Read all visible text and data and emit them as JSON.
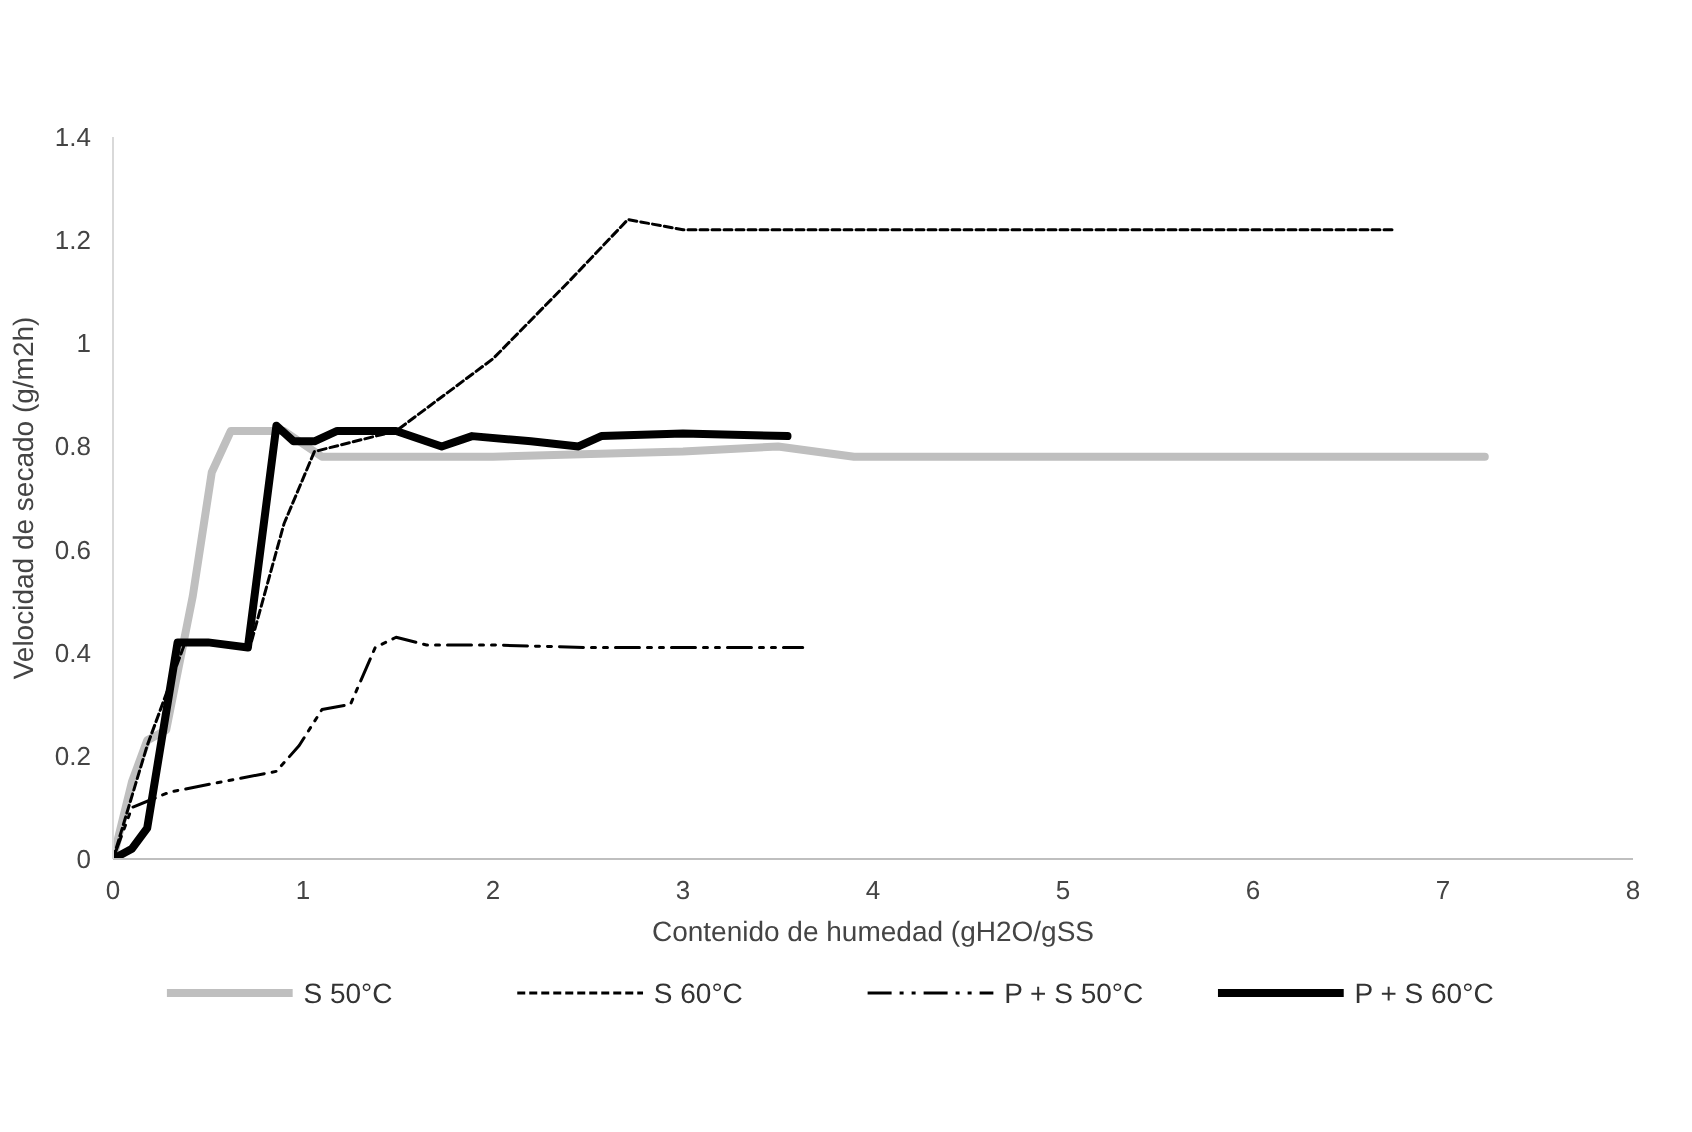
{
  "chart_data": {
    "type": "line",
    "xlabel": "Contenido de humedad (gH2O/gSS",
    "ylabel": "Velocidad de secado (g/m2h)",
    "xlim": [
      0,
      8
    ],
    "xticks": [
      0,
      1,
      2,
      3,
      4,
      5,
      6,
      7,
      8
    ],
    "ylim": [
      0,
      1.4
    ],
    "yticks": [
      0,
      0.2,
      0.4,
      0.6,
      0.8,
      1,
      1.2,
      1.4
    ],
    "grid": false,
    "legend": "bottom",
    "marker": "none",
    "series": [
      {
        "name": "S 50°C",
        "color": "#bfbfbf",
        "line_style": "solid",
        "x": [
          0,
          0.1,
          0.18,
          0.28,
          0.42,
          0.52,
          0.62,
          0.9,
          1.1,
          1.3,
          2.0,
          3.0,
          3.5,
          3.9,
          5.0,
          6.0,
          7.22
        ],
        "values": [
          0,
          0.15,
          0.23,
          0.25,
          0.51,
          0.75,
          0.83,
          0.83,
          0.78,
          0.78,
          0.78,
          0.79,
          0.8,
          0.78,
          0.78,
          0.78,
          0.78
        ]
      },
      {
        "name": "S 60°C",
        "color": "#000000",
        "line_style": "dashed",
        "x": [
          0,
          0.18,
          0.38,
          0.72,
          0.9,
          1.06,
          1.49,
          2.0,
          2.4,
          2.71,
          3.0,
          4.0,
          5.0,
          6.0,
          6.75
        ],
        "values": [
          0,
          0.22,
          0.42,
          0.41,
          0.65,
          0.79,
          0.83,
          0.97,
          1.12,
          1.24,
          1.22,
          1.22,
          1.22,
          1.22,
          1.22
        ]
      },
      {
        "name": "P + S 50°C",
        "color": "#000000",
        "line_style": "dashdot",
        "x": [
          0,
          0.1,
          0.3,
          0.86,
          0.98,
          1.1,
          1.25,
          1.38,
          1.49,
          1.65,
          2.0,
          2.5,
          3.0,
          3.63
        ],
        "values": [
          0,
          0.1,
          0.13,
          0.17,
          0.22,
          0.29,
          0.3,
          0.41,
          0.43,
          0.415,
          0.415,
          0.41,
          0.41,
          0.41
        ]
      },
      {
        "name": "P + S 60°C",
        "color": "#000000",
        "line_style": "solid",
        "x": [
          0,
          0.1,
          0.18,
          0.34,
          0.5,
          0.71,
          0.86,
          0.95,
          1.06,
          1.18,
          1.49,
          1.73,
          1.89,
          2.2,
          2.45,
          2.57,
          3.0,
          3.55
        ],
        "values": [
          0,
          0.02,
          0.06,
          0.42,
          0.42,
          0.41,
          0.84,
          0.81,
          0.81,
          0.83,
          0.83,
          0.8,
          0.82,
          0.81,
          0.8,
          0.82,
          0.825,
          0.82
        ]
      }
    ]
  }
}
